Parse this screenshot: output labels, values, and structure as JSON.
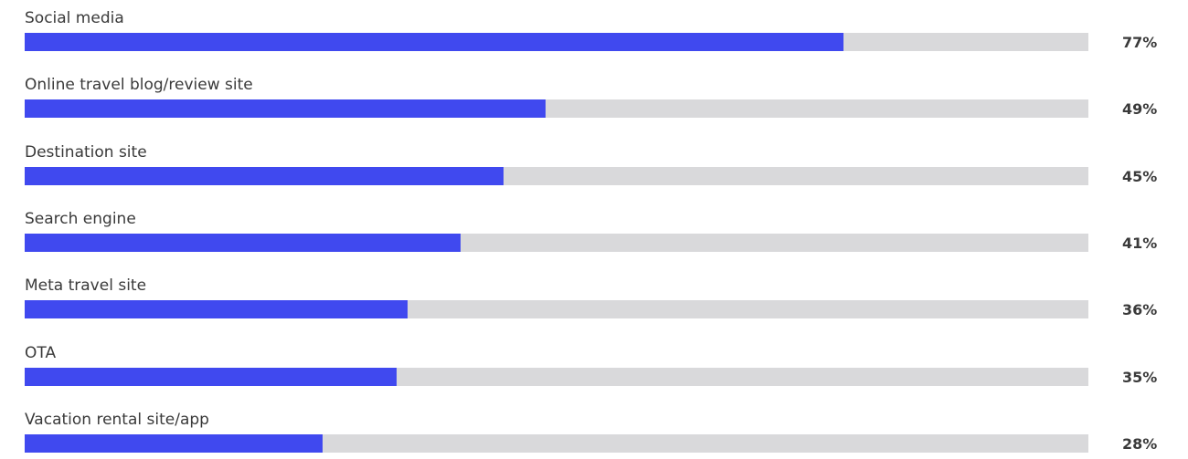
{
  "chart_data": {
    "type": "bar",
    "orientation": "horizontal",
    "categories": [
      "Social media",
      "Online travel blog/review site",
      "Destination site",
      "Search engine",
      "Meta travel site",
      "OTA",
      "Vacation rental site/app"
    ],
    "values": [
      77,
      49,
      45,
      41,
      36,
      35,
      28
    ],
    "value_labels": [
      "77%",
      "49%",
      "45%",
      "41%",
      "36%",
      "35%",
      "28%"
    ],
    "xlim": [
      0,
      100
    ],
    "grid": false,
    "legend": "none",
    "colors": {
      "bar": "#4049ef",
      "track": "#d9d9db",
      "text": "#3a3a3a"
    }
  }
}
